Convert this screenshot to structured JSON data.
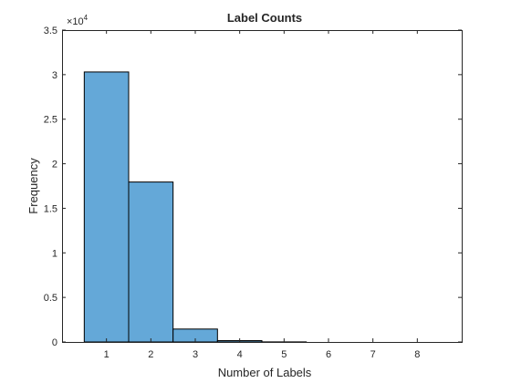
{
  "chart_data": {
    "type": "bar",
    "title": "Label Counts",
    "xlabel": "Number of Labels",
    "ylabel": "Frequency",
    "categories": [
      1,
      2,
      3,
      4,
      5,
      6,
      7,
      8
    ],
    "values": [
      30300,
      17950,
      1450,
      150,
      10,
      0,
      0,
      0
    ],
    "bar_color": "#64a8d8",
    "edge_color": "#000000",
    "xlim": [
      0,
      9
    ],
    "ylim": [
      0,
      35000
    ],
    "y_multiplier_text": "×10",
    "y_multiplier_exponent": "4",
    "xticks": [
      {
        "value": 1,
        "label": "1"
      },
      {
        "value": 2,
        "label": "2"
      },
      {
        "value": 3,
        "label": "3"
      },
      {
        "value": 4,
        "label": "4"
      },
      {
        "value": 5,
        "label": "5"
      },
      {
        "value": 6,
        "label": "6"
      },
      {
        "value": 7,
        "label": "7"
      },
      {
        "value": 8,
        "label": "8"
      }
    ],
    "yticks": [
      {
        "value": 0,
        "label": "0"
      },
      {
        "value": 5000,
        "label": "0.5"
      },
      {
        "value": 10000,
        "label": "1"
      },
      {
        "value": 15000,
        "label": "1.5"
      },
      {
        "value": 20000,
        "label": "2"
      },
      {
        "value": 25000,
        "label": "2.5"
      },
      {
        "value": 30000,
        "label": "3"
      },
      {
        "value": 35000,
        "label": "3.5"
      }
    ],
    "grid": false,
    "legend": "none"
  }
}
